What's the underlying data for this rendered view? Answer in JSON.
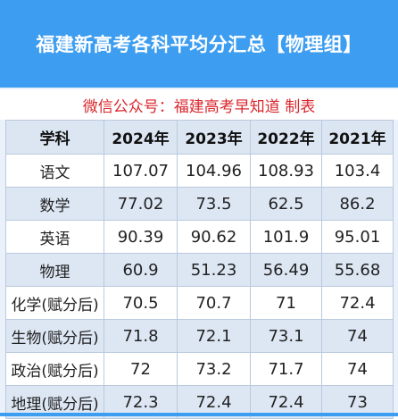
{
  "title": "福建新高考各科平均分汇总【物理组】",
  "subtitle": "微信公众号：福建高考早知道 制表",
  "table": {
    "headers": [
      "学科",
      "2024年",
      "2023年",
      "2022年",
      "2021年"
    ],
    "rows": [
      [
        "语文",
        "107.07",
        "104.96",
        "108.93",
        "103.4"
      ],
      [
        "数学",
        "77.02",
        "73.5",
        "62.5",
        "86.2"
      ],
      [
        "英语",
        "90.39",
        "90.62",
        "101.9",
        "95.01"
      ],
      [
        "物理",
        "60.9",
        "51.23",
        "56.49",
        "55.68"
      ],
      [
        "化学(赋分后)",
        "70.5",
        "70.7",
        "71",
        "72.4"
      ],
      [
        "生物(赋分后)",
        "71.8",
        "72.1",
        "73.1",
        "74"
      ],
      [
        "政治(赋分后)",
        "72",
        "73.2",
        "71.7",
        "74"
      ],
      [
        "地理(赋分后)",
        "72.3",
        "72.4",
        "72.4",
        "73"
      ]
    ]
  },
  "colors": {
    "title_background": "#3d9df0",
    "subtitle_text": "#d9262c",
    "header_background": "#dce6f3",
    "stripe_background": "#dde7f4"
  }
}
